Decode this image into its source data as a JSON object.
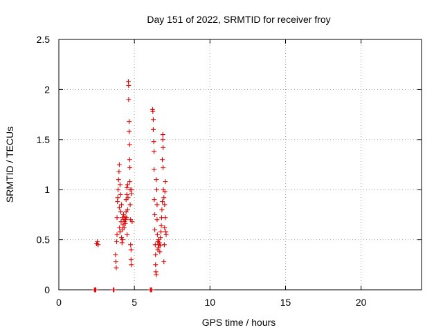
{
  "chart_data": {
    "type": "scatter",
    "title": "Day 151 of 2022, SRMTID for receiver froy",
    "xlabel": "GPS time / hours",
    "ylabel": "SRMTID / TECUs",
    "xlim": [
      0,
      24
    ],
    "ylim": [
      0,
      2.5
    ],
    "xticks": [
      0,
      5,
      10,
      15,
      20
    ],
    "xtick_labels": [
      "0",
      "5",
      "10",
      "15",
      "20"
    ],
    "yticks": [
      0,
      0.5,
      1,
      1.5,
      2,
      2.5
    ],
    "ytick_labels": [
      "0",
      "0.5",
      "1",
      "1.5",
      "2",
      "2.5"
    ],
    "grid": true,
    "marker": "+",
    "series": [
      {
        "name": "SRMTID",
        "color": "#dd0000",
        "points": [
          [
            2.35,
            0
          ],
          [
            2.4,
            0
          ],
          [
            2.45,
            0
          ],
          [
            2.5,
            0.46
          ],
          [
            2.55,
            0.48
          ],
          [
            2.6,
            0.45
          ],
          [
            3.6,
            0
          ],
          [
            3.65,
            0
          ],
          [
            3.75,
            0.35
          ],
          [
            3.78,
            0.28
          ],
          [
            3.8,
            0.22
          ],
          [
            3.82,
            0.48
          ],
          [
            3.85,
            0.55
          ],
          [
            3.85,
            0.72
          ],
          [
            3.88,
            0.88
          ],
          [
            3.9,
            0.92
          ],
          [
            3.92,
            1.0
          ],
          [
            3.95,
            1.1
          ],
          [
            3.98,
            1.18
          ],
          [
            4.0,
            1.25
          ],
          [
            4.0,
            0.82
          ],
          [
            4.02,
            0.62
          ],
          [
            4.05,
            0.58
          ],
          [
            4.05,
            1.05
          ],
          [
            4.08,
            0.95
          ],
          [
            4.1,
            0.78
          ],
          [
            4.12,
            0.68
          ],
          [
            4.15,
            0.52
          ],
          [
            4.15,
            0.85
          ],
          [
            4.18,
            0.47
          ],
          [
            4.2,
            0.6
          ],
          [
            4.2,
            0.72
          ],
          [
            4.22,
            0.5
          ],
          [
            4.25,
            0.65
          ],
          [
            4.28,
            0.75
          ],
          [
            4.3,
            0.7
          ],
          [
            4.32,
            0.62
          ],
          [
            4.35,
            0.68
          ],
          [
            4.38,
            0.73
          ],
          [
            4.4,
            0.66
          ],
          [
            4.42,
            0.7
          ],
          [
            4.45,
            0.78
          ],
          [
            4.45,
            0.9
          ],
          [
            4.48,
            0.72
          ],
          [
            4.5,
            0.95
          ],
          [
            4.5,
            1.02
          ],
          [
            4.52,
            0.55
          ],
          [
            4.55,
            0.8
          ],
          [
            4.55,
            1.05
          ],
          [
            4.58,
            0.92
          ],
          [
            4.6,
            2.08
          ],
          [
            4.62,
            2.04
          ],
          [
            4.62,
            1.9
          ],
          [
            4.65,
            1.68
          ],
          [
            4.65,
            1.58
          ],
          [
            4.68,
            1.45
          ],
          [
            4.68,
            1.3
          ],
          [
            4.7,
            1.22
          ],
          [
            4.7,
            1.08
          ],
          [
            4.72,
            1.0
          ],
          [
            4.72,
            0.85
          ],
          [
            4.75,
            0.7
          ],
          [
            4.75,
            0.45
          ],
          [
            4.78,
            0.4
          ],
          [
            4.78,
            0.3
          ],
          [
            4.8,
            0.25
          ],
          [
            4.8,
            0.96
          ],
          [
            4.82,
            1.0
          ],
          [
            4.85,
            0.68
          ],
          [
            6.05,
            0
          ],
          [
            6.1,
            0
          ],
          [
            6.15,
            0
          ],
          [
            6.2,
            1.8
          ],
          [
            6.22,
            1.78
          ],
          [
            6.25,
            1.7
          ],
          [
            6.25,
            1.6
          ],
          [
            6.28,
            1.48
          ],
          [
            6.3,
            1.38
          ],
          [
            6.3,
            1.2
          ],
          [
            6.32,
            0.9
          ],
          [
            6.35,
            0.75
          ],
          [
            6.35,
            0.6
          ],
          [
            6.38,
            0.45
          ],
          [
            6.4,
            0.35
          ],
          [
            6.4,
            0.25
          ],
          [
            6.42,
            0.18
          ],
          [
            6.45,
            0.15
          ],
          [
            6.45,
            1.1
          ],
          [
            6.48,
            1.0
          ],
          [
            6.5,
            0.85
          ],
          [
            6.5,
            0.7
          ],
          [
            6.52,
            0.55
          ],
          [
            6.55,
            0.48
          ],
          [
            6.55,
            0.4
          ],
          [
            6.58,
            0.42
          ],
          [
            6.6,
            0.5
          ],
          [
            6.62,
            0.45
          ],
          [
            6.65,
            0.47
          ],
          [
            6.68,
            0.38
          ],
          [
            6.7,
            0.44
          ],
          [
            6.72,
            0.52
          ],
          [
            6.75,
            0.58
          ],
          [
            6.78,
            0.64
          ],
          [
            6.8,
            0.72
          ],
          [
            6.82,
            0.8
          ],
          [
            6.85,
            0.88
          ],
          [
            6.85,
            1.3
          ],
          [
            6.88,
            1.5
          ],
          [
            6.88,
            1.55
          ],
          [
            6.9,
            1.42
          ],
          [
            6.9,
            1.22
          ],
          [
            6.92,
            1.0
          ],
          [
            6.95,
            0.92
          ],
          [
            6.95,
            0.28
          ],
          [
            6.98,
            0.45
          ],
          [
            7.0,
            0.62
          ],
          [
            7.0,
            0.85
          ],
          [
            7.02,
            0.98
          ],
          [
            7.05,
            1.08
          ],
          [
            7.05,
            0.72
          ],
          [
            7.08,
            0.58
          ],
          [
            7.1,
            0.55
          ]
        ]
      }
    ]
  }
}
